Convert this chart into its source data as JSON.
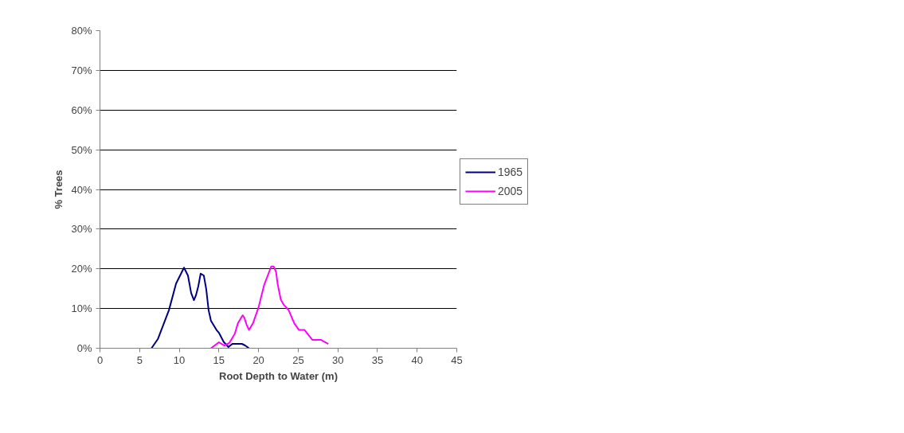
{
  "chart_data": {
    "type": "line",
    "xlabel": "Root Depth to Water (m)",
    "ylabel": "% Trees",
    "xlim": [
      0,
      45
    ],
    "xticks": [
      0,
      5,
      10,
      15,
      20,
      25,
      30,
      35,
      40,
      45
    ],
    "ylim": [
      0,
      80
    ],
    "yticks": [
      {
        "value": 0,
        "label": "0%"
      },
      {
        "value": 10,
        "label": "10%"
      },
      {
        "value": 20,
        "label": "20%"
      },
      {
        "value": 30,
        "label": "30%"
      },
      {
        "value": 40,
        "label": "40%"
      },
      {
        "value": 50,
        "label": "50%"
      },
      {
        "value": 60,
        "label": "60%"
      },
      {
        "value": 70,
        "label": "70%"
      },
      {
        "value": 80,
        "label": "80%"
      }
    ],
    "grid": "y",
    "legend": "right",
    "marker": "none",
    "series": [
      {
        "name": "1965",
        "color": "#000080",
        "x": [
          6.5,
          7.3,
          8.7,
          9.6,
          10.6,
          11.1,
          11.5,
          11.85,
          12.1,
          12.4,
          12.7,
          13.1,
          13.4,
          13.7,
          14.0,
          14.7,
          15.0,
          15.6,
          16.2,
          16.7,
          17.9,
          18.3,
          18.8
        ],
        "values": [
          0,
          2.3,
          9.6,
          16.3,
          20.3,
          18.3,
          13.9,
          12.1,
          13.3,
          15.6,
          18.8,
          18.3,
          14.9,
          9.6,
          6.9,
          4.6,
          3.9,
          1.6,
          0.3,
          1.1,
          1.1,
          0.7,
          0
        ]
      },
      {
        "name": "2005",
        "color": "#ff00ff",
        "x": [
          14.0,
          15.0,
          15.7,
          16.3,
          17.0,
          17.4,
          18.0,
          18.2,
          18.5,
          18.8,
          19.3,
          20.0,
          20.7,
          21.6,
          21.9,
          22.2,
          22.4,
          22.8,
          23.2,
          23.8,
          24.5,
          25.1,
          25.8,
          26.8,
          27.9,
          28.8
        ],
        "values": [
          0,
          1.5,
          0.7,
          1.3,
          3.6,
          6.3,
          8.3,
          7.7,
          5.9,
          4.6,
          6.3,
          10.3,
          15.9,
          20.6,
          20.6,
          19.3,
          16.3,
          12.3,
          10.9,
          9.6,
          6.3,
          4.6,
          4.6,
          2.1,
          2.1,
          1.1
        ]
      }
    ]
  }
}
